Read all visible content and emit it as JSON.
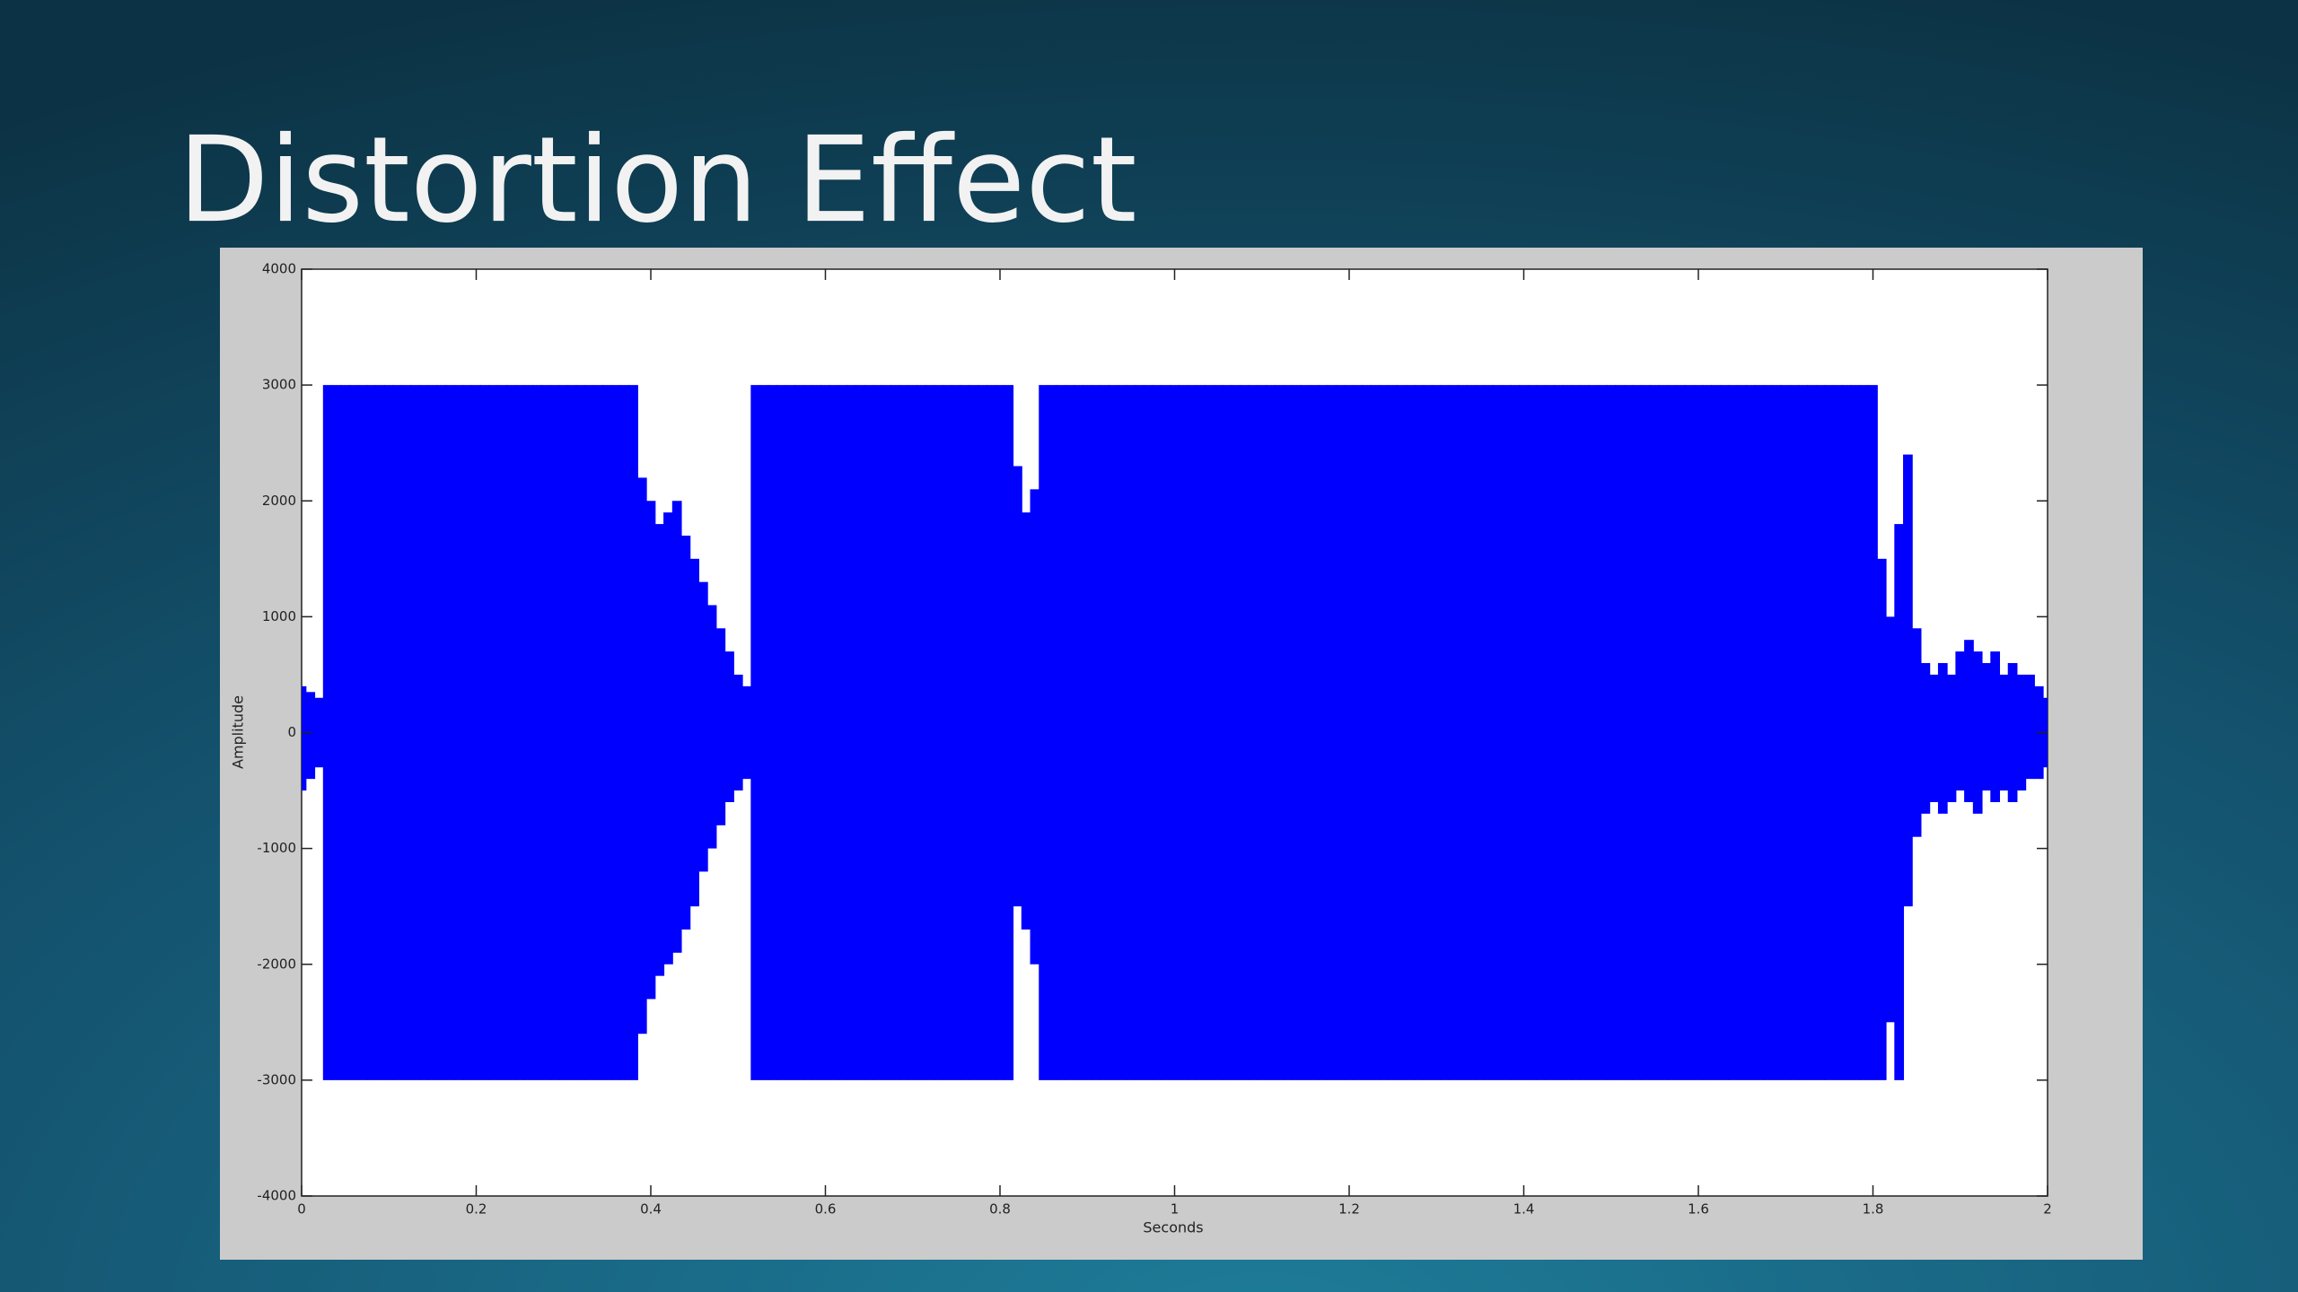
{
  "slide": {
    "title": "Distortion Effect"
  },
  "chart_data": {
    "type": "range",
    "xlabel": "Seconds",
    "ylabel": "Amplitude",
    "color": "#0000ff",
    "xlim": [
      0,
      2
    ],
    "xticks": [
      0,
      0.2,
      0.4,
      0.6,
      0.8,
      1,
      1.2,
      1.4,
      1.6,
      1.8,
      2
    ],
    "ylim": [
      -4000,
      4000
    ],
    "yticks": [
      -4000,
      -3000,
      -2000,
      -1000,
      0,
      1000,
      2000,
      3000,
      4000
    ],
    "x": [
      0,
      0.01,
      0.02,
      0.03,
      0.04,
      0.05,
      0.06,
      0.07,
      0.08,
      0.09,
      0.1,
      0.11,
      0.12,
      0.13,
      0.14,
      0.15,
      0.16,
      0.17,
      0.18,
      0.19,
      0.2,
      0.21,
      0.22,
      0.23,
      0.24,
      0.25,
      0.26,
      0.27,
      0.28,
      0.29,
      0.3,
      0.31,
      0.32,
      0.33,
      0.34,
      0.35,
      0.36,
      0.37,
      0.38,
      0.39,
      0.4,
      0.41,
      0.42,
      0.43,
      0.44,
      0.45,
      0.46,
      0.47,
      0.48,
      0.49,
      0.5,
      0.51,
      0.52,
      0.53,
      0.54,
      0.55,
      0.56,
      0.57,
      0.58,
      0.59,
      0.6,
      0.61,
      0.62,
      0.63,
      0.64,
      0.65,
      0.66,
      0.67,
      0.68,
      0.69,
      0.7,
      0.71,
      0.72,
      0.73,
      0.74,
      0.75,
      0.76,
      0.77,
      0.78,
      0.79,
      0.8,
      0.81,
      0.82,
      0.83,
      0.84,
      0.85,
      0.86,
      0.87,
      0.88,
      0.89,
      0.9,
      0.91,
      0.92,
      0.93,
      0.94,
      0.95,
      0.96,
      0.97,
      0.98,
      0.99,
      1,
      1.01,
      1.02,
      1.03,
      1.04,
      1.05,
      1.06,
      1.07,
      1.08,
      1.09,
      1.1,
      1.11,
      1.12,
      1.13,
      1.14,
      1.15,
      1.16,
      1.17,
      1.18,
      1.19,
      1.2,
      1.21,
      1.22,
      1.23,
      1.24,
      1.25,
      1.26,
      1.27,
      1.28,
      1.29,
      1.3,
      1.31,
      1.32,
      1.33,
      1.34,
      1.35,
      1.36,
      1.37,
      1.38,
      1.39,
      1.4,
      1.41,
      1.42,
      1.43,
      1.44,
      1.45,
      1.46,
      1.47,
      1.48,
      1.49,
      1.5,
      1.51,
      1.52,
      1.53,
      1.54,
      1.55,
      1.56,
      1.57,
      1.58,
      1.59,
      1.6,
      1.61,
      1.62,
      1.63,
      1.64,
      1.65,
      1.66,
      1.67,
      1.68,
      1.69,
      1.7,
      1.71,
      1.72,
      1.73,
      1.74,
      1.75,
      1.76,
      1.77,
      1.78,
      1.79,
      1.8,
      1.81,
      1.82,
      1.83,
      1.84,
      1.85,
      1.86,
      1.87,
      1.88,
      1.89,
      1.9,
      1.91,
      1.92,
      1.93,
      1.94,
      1.95,
      1.96,
      1.97,
      1.98,
      1.99,
      2
    ],
    "upper": [
      400,
      350,
      300,
      3000,
      3000,
      3000,
      3000,
      3000,
      3000,
      3000,
      3000,
      3000,
      3000,
      3000,
      3000,
      3000,
      3000,
      3000,
      3000,
      3000,
      3000,
      3000,
      3000,
      3000,
      3000,
      3000,
      3000,
      3000,
      3000,
      3000,
      3000,
      3000,
      3000,
      3000,
      3000,
      3000,
      3000,
      3000,
      3000,
      2200,
      2000,
      1800,
      1900,
      2000,
      1700,
      1500,
      1300,
      1100,
      900,
      700,
      500,
      400,
      3000,
      3000,
      3000,
      3000,
      3000,
      3000,
      3000,
      3000,
      3000,
      3000,
      3000,
      3000,
      3000,
      3000,
      3000,
      3000,
      3000,
      3000,
      3000,
      3000,
      3000,
      3000,
      3000,
      3000,
      3000,
      3000,
      3000,
      3000,
      3000,
      3000,
      2300,
      1900,
      2100,
      3000,
      3000,
      3000,
      3000,
      3000,
      3000,
      3000,
      3000,
      3000,
      3000,
      3000,
      3000,
      3000,
      3000,
      3000,
      3000,
      3000,
      3000,
      3000,
      3000,
      3000,
      3000,
      3000,
      3000,
      3000,
      3000,
      3000,
      3000,
      3000,
      3000,
      3000,
      3000,
      3000,
      3000,
      3000,
      3000,
      3000,
      3000,
      3000,
      3000,
      3000,
      3000,
      3000,
      3000,
      3000,
      3000,
      3000,
      3000,
      3000,
      3000,
      3000,
      3000,
      3000,
      3000,
      3000,
      3000,
      3000,
      3000,
      3000,
      3000,
      3000,
      3000,
      3000,
      3000,
      3000,
      3000,
      3000,
      3000,
      3000,
      3000,
      3000,
      3000,
      3000,
      3000,
      3000,
      3000,
      3000,
      3000,
      3000,
      3000,
      3000,
      3000,
      3000,
      3000,
      3000,
      3000,
      3000,
      3000,
      3000,
      3000,
      3000,
      3000,
      3000,
      3000,
      3000,
      3000,
      1500,
      1000,
      1800,
      2400,
      900,
      600,
      500,
      600,
      500,
      700,
      800,
      700,
      600,
      700,
      500,
      600,
      500,
      500,
      400,
      300
    ],
    "lower": [
      -500,
      -400,
      -300,
      -3000,
      -3000,
      -3000,
      -3000,
      -3000,
      -3000,
      -3000,
      -3000,
      -3000,
      -3000,
      -3000,
      -3000,
      -3000,
      -3000,
      -3000,
      -3000,
      -3000,
      -3000,
      -3000,
      -3000,
      -3000,
      -3000,
      -3000,
      -3000,
      -3000,
      -3000,
      -3000,
      -3000,
      -3000,
      -3000,
      -3000,
      -3000,
      -3000,
      -3000,
      -3000,
      -3000,
      -2600,
      -2300,
      -2100,
      -2000,
      -1900,
      -1700,
      -1500,
      -1200,
      -1000,
      -800,
      -600,
      -500,
      -400,
      -3000,
      -3000,
      -3000,
      -3000,
      -3000,
      -3000,
      -3000,
      -3000,
      -3000,
      -3000,
      -3000,
      -3000,
      -3000,
      -3000,
      -3000,
      -3000,
      -3000,
      -3000,
      -3000,
      -3000,
      -3000,
      -3000,
      -3000,
      -3000,
      -3000,
      -3000,
      -3000,
      -3000,
      -3000,
      -3000,
      -1500,
      -1700,
      -2000,
      -3000,
      -3000,
      -3000,
      -3000,
      -3000,
      -3000,
      -3000,
      -3000,
      -3000,
      -3000,
      -3000,
      -3000,
      -3000,
      -3000,
      -3000,
      -3000,
      -3000,
      -3000,
      -3000,
      -3000,
      -3000,
      -3000,
      -3000,
      -3000,
      -3000,
      -3000,
      -3000,
      -3000,
      -3000,
      -3000,
      -3000,
      -3000,
      -3000,
      -3000,
      -3000,
      -3000,
      -3000,
      -3000,
      -3000,
      -3000,
      -3000,
      -3000,
      -3000,
      -3000,
      -3000,
      -3000,
      -3000,
      -3000,
      -3000,
      -3000,
      -3000,
      -3000,
      -3000,
      -3000,
      -3000,
      -3000,
      -3000,
      -3000,
      -3000,
      -3000,
      -3000,
      -3000,
      -3000,
      -3000,
      -3000,
      -3000,
      -3000,
      -3000,
      -3000,
      -3000,
      -3000,
      -3000,
      -3000,
      -3000,
      -3000,
      -3000,
      -3000,
      -3000,
      -3000,
      -3000,
      -3000,
      -3000,
      -3000,
      -3000,
      -3000,
      -3000,
      -3000,
      -3000,
      -3000,
      -3000,
      -3000,
      -3000,
      -3000,
      -3000,
      -3000,
      -3000,
      -3000,
      -2500,
      -3000,
      -1500,
      -900,
      -700,
      -600,
      -700,
      -600,
      -500,
      -600,
      -700,
      -500,
      -600,
      -500,
      -600,
      -500,
      -400,
      -400,
      -300
    ]
  }
}
